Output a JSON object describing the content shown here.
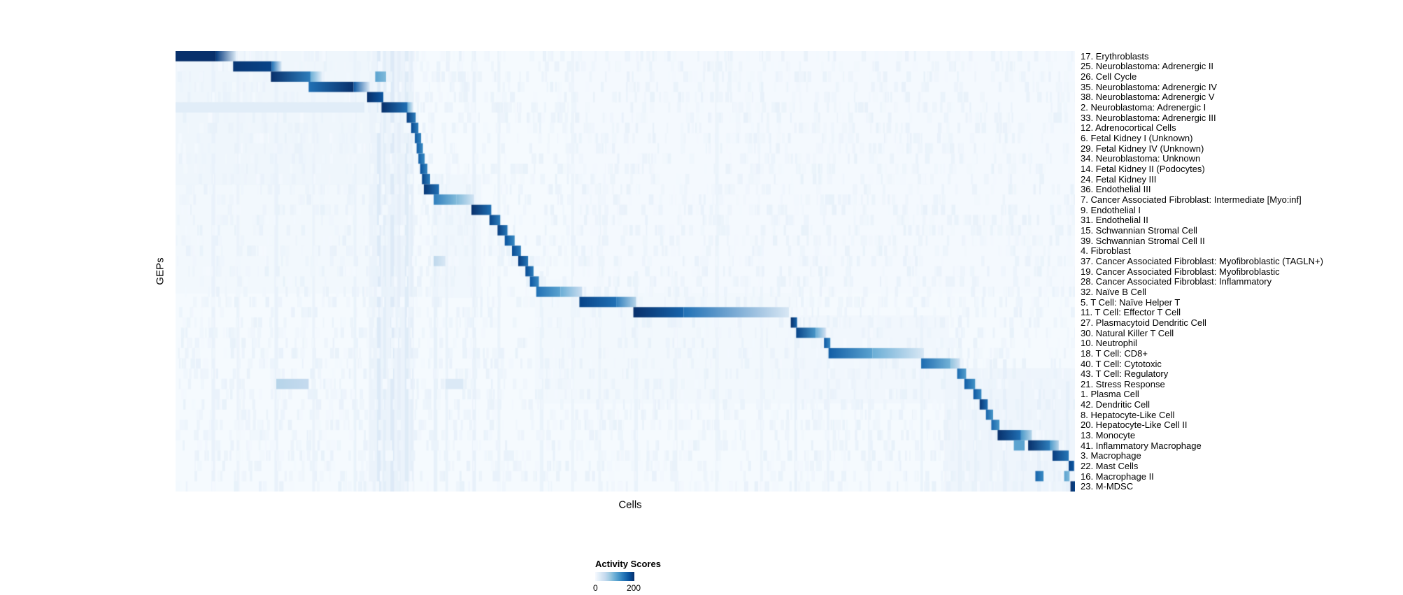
{
  "chart_data": {
    "type": "heatmap",
    "xlabel": "Cells",
    "ylabel": "GEPs",
    "colorbar": {
      "title": "Activity Scores",
      "min": 0,
      "max": 200,
      "min_label": "0",
      "max_label": "200"
    },
    "colormap": {
      "name": "Blues",
      "stops": [
        "#f7fbff",
        "#deebf7",
        "#c6dbef",
        "#9ecae1",
        "#6baed6",
        "#4292c6",
        "#2171b5",
        "#08519c",
        "#08306b"
      ]
    },
    "value_units": "activity score (0-200), segments are [x_start_frac, x_end_frac, value_start, value_end] across the cell axis",
    "background_value": 2,
    "rows": [
      {
        "label": "17. Erythroblasts",
        "segments": [
          [
            0.0,
            0.045,
            200,
            200
          ],
          [
            0.045,
            0.067,
            190,
            30
          ]
        ]
      },
      {
        "label": "25. Neuroblastoma: Adrenergic II",
        "segments": [
          [
            0.064,
            0.107,
            195,
            185
          ],
          [
            0.107,
            0.118,
            150,
            25
          ]
        ]
      },
      {
        "label": "26. Cell Cycle",
        "segments": [
          [
            0.106,
            0.15,
            200,
            140
          ],
          [
            0.15,
            0.163,
            100,
            20
          ],
          [
            0.222,
            0.234,
            110,
            90
          ]
        ]
      },
      {
        "label": "35. Neuroblastoma: Adrenergic IV",
        "segments": [
          [
            0.148,
            0.198,
            150,
            200
          ],
          [
            0.198,
            0.216,
            170,
            25
          ]
        ]
      },
      {
        "label": "38. Neuroblastoma: Adrenergic V",
        "segments": [
          [
            0.213,
            0.231,
            200,
            170
          ]
        ]
      },
      {
        "label": "2. Neuroblastoma: Adrenergic I",
        "segments": [
          [
            0.0,
            0.21,
            22,
            22
          ],
          [
            0.229,
            0.258,
            200,
            150
          ],
          [
            0.258,
            0.264,
            100,
            30
          ]
        ]
      },
      {
        "label": "33. Neuroblastoma: Adrenergic III",
        "segments": [
          [
            0.257,
            0.267,
            190,
            140
          ]
        ]
      },
      {
        "label": "12. Adrenocortical Cells",
        "segments": [
          [
            0.262,
            0.27,
            180,
            140
          ]
        ]
      },
      {
        "label": "6. Fetal Kidney I (Unknown)",
        "segments": [
          [
            0.266,
            0.273,
            170,
            135
          ]
        ]
      },
      {
        "label": "29. Fetal Kidney IV (Unknown)",
        "segments": [
          [
            0.268,
            0.275,
            165,
            130
          ]
        ]
      },
      {
        "label": "34. Neuroblastoma: Unknown",
        "segments": [
          [
            0.27,
            0.277,
            165,
            130
          ]
        ]
      },
      {
        "label": "14. Fetal Kidney II (Podocytes)",
        "segments": [
          [
            0.272,
            0.28,
            175,
            135
          ]
        ]
      },
      {
        "label": "24. Fetal Kidney III",
        "segments": [
          [
            0.274,
            0.283,
            185,
            140
          ]
        ]
      },
      {
        "label": "36. Endothelial III",
        "segments": [
          [
            0.276,
            0.293,
            195,
            150
          ]
        ]
      },
      {
        "label": "7. Cancer Associated Fibroblast: Intermediate [Myo:inf]",
        "segments": [
          [
            0.287,
            0.312,
            140,
            90
          ],
          [
            0.312,
            0.332,
            90,
            35
          ]
        ]
      },
      {
        "label": "9. Endothelial I",
        "segments": [
          [
            0.329,
            0.351,
            200,
            150
          ]
        ]
      },
      {
        "label": "31. Endothelial II",
        "segments": [
          [
            0.349,
            0.361,
            185,
            140
          ]
        ]
      },
      {
        "label": "15. Schwannian Stromal Cell",
        "segments": [
          [
            0.358,
            0.369,
            190,
            145
          ]
        ]
      },
      {
        "label": "39. Schwannian Stromal Cell II",
        "segments": [
          [
            0.366,
            0.377,
            175,
            130
          ]
        ]
      },
      {
        "label": "4. Fibroblast",
        "segments": [
          [
            0.374,
            0.384,
            180,
            140
          ]
        ]
      },
      {
        "label": "37. Cancer Associated Fibroblast: Myofibroblastic (TAGLN+)",
        "segments": [
          [
            0.381,
            0.392,
            190,
            145
          ],
          [
            0.287,
            0.3,
            55,
            30
          ]
        ]
      },
      {
        "label": "19. Cancer Associated Fibroblast: Myofibroblastic",
        "segments": [
          [
            0.389,
            0.398,
            180,
            140
          ]
        ]
      },
      {
        "label": "28. Cancer Associated Fibroblast: Inflammatory",
        "segments": [
          [
            0.394,
            0.404,
            170,
            130
          ]
        ]
      },
      {
        "label": "32. Naïve B Cell",
        "segments": [
          [
            0.401,
            0.428,
            150,
            110
          ],
          [
            0.428,
            0.452,
            100,
            45
          ]
        ]
      },
      {
        "label": "5. T Cell: Naïve Helper T",
        "segments": [
          [
            0.449,
            0.49,
            185,
            150
          ],
          [
            0.49,
            0.512,
            140,
            60
          ]
        ]
      },
      {
        "label": "11. T Cell: Effector T Cell",
        "segments": [
          [
            0.509,
            0.565,
            200,
            160
          ],
          [
            0.565,
            0.682,
            150,
            30
          ]
        ]
      },
      {
        "label": "27. Plasmacytoid Dendritic Cell",
        "segments": [
          [
            0.684,
            0.691,
            200,
            160
          ]
        ]
      },
      {
        "label": "30. Natural Killer T Cell",
        "segments": [
          [
            0.69,
            0.712,
            185,
            120
          ],
          [
            0.712,
            0.723,
            100,
            40
          ]
        ]
      },
      {
        "label": "10. Neutrophil",
        "segments": [
          [
            0.721,
            0.728,
            170,
            130
          ]
        ]
      },
      {
        "label": "18. T Cell: CD8+",
        "segments": [
          [
            0.726,
            0.775,
            165,
            110
          ],
          [
            0.775,
            0.832,
            100,
            30
          ]
        ]
      },
      {
        "label": "40. T Cell: Cytotoxic",
        "segments": [
          [
            0.829,
            0.862,
            155,
            95
          ],
          [
            0.862,
            0.872,
            80,
            40
          ]
        ]
      },
      {
        "label": "43. T Cell: Regulatory",
        "segments": [
          [
            0.869,
            0.879,
            155,
            115
          ]
        ]
      },
      {
        "label": "21. Stress Response",
        "segments": [
          [
            0.877,
            0.889,
            165,
            125
          ],
          [
            0.112,
            0.148,
            60,
            50
          ],
          [
            0.3,
            0.32,
            28,
            28
          ]
        ]
      },
      {
        "label": "1. Plasma Cell",
        "segments": [
          [
            0.887,
            0.896,
            170,
            130
          ]
        ]
      },
      {
        "label": "42. Dendritic Cell",
        "segments": [
          [
            0.894,
            0.903,
            195,
            150
          ]
        ]
      },
      {
        "label": "8. Hepatocyte-Like Cell",
        "segments": [
          [
            0.901,
            0.909,
            160,
            120
          ]
        ]
      },
      {
        "label": "20. Hepatocyte-Like Cell II",
        "segments": [
          [
            0.907,
            0.916,
            160,
            120
          ]
        ]
      },
      {
        "label": "13. Monocyte",
        "segments": [
          [
            0.914,
            0.94,
            200,
            150
          ],
          [
            0.94,
            0.952,
            120,
            60
          ]
        ]
      },
      {
        "label": "41. Inflammatory Macrophage",
        "segments": [
          [
            0.932,
            0.944,
            110,
            110
          ],
          [
            0.948,
            0.972,
            200,
            140
          ],
          [
            0.972,
            0.982,
            120,
            60
          ]
        ]
      },
      {
        "label": "3. Macrophage",
        "segments": [
          [
            0.975,
            0.993,
            190,
            145
          ]
        ]
      },
      {
        "label": "22. Mast Cells",
        "segments": [
          [
            0.993,
            0.999,
            185,
            170
          ]
        ]
      },
      {
        "label": "16. Macrophage II",
        "segments": [
          [
            0.956,
            0.965,
            160,
            130
          ],
          [
            0.988,
            0.994,
            110,
            90
          ]
        ]
      },
      {
        "label": "23. M-MDSC",
        "segments": [
          [
            0.995,
            1.0,
            200,
            185
          ]
        ]
      }
    ],
    "washes": [
      [
        0.0,
        0.215,
        8,
        0.0,
        0.305
      ],
      [
        0.0,
        0.215,
        5,
        0.305,
        0.55
      ],
      [
        0.215,
        0.05,
        12,
        0.0,
        1.0
      ],
      [
        0.285,
        0.055,
        7,
        0.28,
        0.56
      ],
      [
        0.4,
        0.29,
        5,
        0.52,
        0.8
      ],
      [
        0.69,
        0.17,
        6,
        0.6,
        0.8
      ],
      [
        0.855,
        0.145,
        9,
        0.72,
        1.0
      ],
      [
        0.44,
        0.56,
        3,
        0.0,
        0.55
      ]
    ],
    "streaks": [
      [
        0.04,
        0.004,
        14,
        0,
        1
      ],
      [
        0.068,
        0.003,
        12,
        0,
        1
      ],
      [
        0.11,
        0.004,
        14,
        0,
        1
      ],
      [
        0.152,
        0.003,
        12,
        0,
        1
      ],
      [
        0.198,
        0.003,
        13,
        0,
        1
      ],
      [
        0.224,
        0.004,
        26,
        0,
        1
      ],
      [
        0.231,
        0.003,
        20,
        0,
        1
      ],
      [
        0.239,
        0.004,
        26,
        0,
        1
      ],
      [
        0.247,
        0.003,
        18,
        0,
        1
      ],
      [
        0.255,
        0.004,
        24,
        0,
        1
      ],
      [
        0.261,
        0.003,
        18,
        0,
        1
      ],
      [
        0.287,
        0.004,
        16,
        0.28,
        1
      ],
      [
        0.3,
        0.003,
        13,
        0.28,
        1
      ],
      [
        0.33,
        0.004,
        15,
        0,
        1
      ],
      [
        0.358,
        0.003,
        13,
        0,
        1
      ],
      [
        0.405,
        0.004,
        13,
        0.5,
        1
      ],
      [
        0.44,
        0.003,
        11,
        0,
        1
      ],
      [
        0.47,
        0.003,
        11,
        0.3,
        1
      ],
      [
        0.51,
        0.004,
        13,
        0.5,
        1
      ],
      [
        0.555,
        0.003,
        11,
        0.5,
        1
      ],
      [
        0.6,
        0.004,
        11,
        0,
        1
      ],
      [
        0.65,
        0.003,
        11,
        0.5,
        1
      ],
      [
        0.688,
        0.003,
        15,
        0.55,
        1
      ],
      [
        0.724,
        0.003,
        13,
        0.6,
        1
      ],
      [
        0.77,
        0.003,
        11,
        0.6,
        1
      ],
      [
        0.828,
        0.003,
        13,
        0.6,
        1
      ],
      [
        0.87,
        0.004,
        15,
        0.6,
        1
      ],
      [
        0.888,
        0.003,
        16,
        0.7,
        1
      ],
      [
        0.905,
        0.003,
        15,
        0.7,
        1
      ],
      [
        0.92,
        0.004,
        17,
        0.7,
        1
      ],
      [
        0.94,
        0.003,
        15,
        0.75,
        1
      ],
      [
        0.958,
        0.004,
        17,
        0.75,
        1
      ],
      [
        0.975,
        0.003,
        15,
        0.75,
        1
      ],
      [
        0.99,
        0.004,
        17,
        0.75,
        1
      ]
    ],
    "noise": {
      "seed": 1337,
      "count": 5000,
      "min_value": 3,
      "max_value": 15
    }
  }
}
